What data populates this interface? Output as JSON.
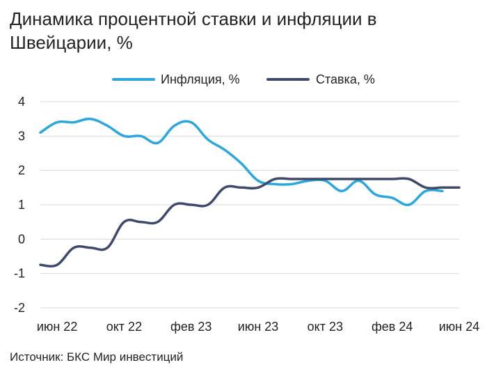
{
  "title": "Динамика процентной ставки и инфляции в Швейцарии, %",
  "source": "Источник: БКС Мир инвестиций",
  "chart_data": {
    "type": "line",
    "title": "Динамика процентной ставки и инфляции в Швейцарии, %",
    "xlabel": "",
    "ylabel": "",
    "ylim": [
      -2,
      4
    ],
    "yticks": [
      "4",
      "3",
      "2",
      "1",
      "0",
      "-1",
      "-2"
    ],
    "xticks": [
      "июн 22",
      "окт 22",
      "фев 23",
      "июн 23",
      "окт 23",
      "фев 24",
      "июн 24"
    ],
    "xlim": [
      "2022-05",
      "2024-06"
    ],
    "grid": true,
    "legend": "top",
    "x": [
      "2022-05",
      "2022-06",
      "2022-07",
      "2022-08",
      "2022-09",
      "2022-10",
      "2022-11",
      "2022-12",
      "2023-01",
      "2023-02",
      "2023-03",
      "2023-04",
      "2023-05",
      "2023-06",
      "2023-07",
      "2023-08",
      "2023-09",
      "2023-10",
      "2023-11",
      "2023-12",
      "2024-01",
      "2024-02",
      "2024-03",
      "2024-04",
      "2024-05",
      "2024-06"
    ],
    "series": [
      {
        "name": "Инфляция, %",
        "color": "#2aa7de",
        "values": [
          3.1,
          3.4,
          3.4,
          3.5,
          3.3,
          3.0,
          3.0,
          2.8,
          3.3,
          3.4,
          2.9,
          2.6,
          2.2,
          1.7,
          1.6,
          1.6,
          1.7,
          1.7,
          1.4,
          1.7,
          1.3,
          1.2,
          1.0,
          1.4,
          1.4,
          null
        ]
      },
      {
        "name": "Ставка, %",
        "color": "#3d4a6b",
        "values": [
          -0.75,
          -0.75,
          -0.25,
          -0.25,
          -0.25,
          0.5,
          0.5,
          0.5,
          1.0,
          1.0,
          1.0,
          1.5,
          1.5,
          1.5,
          1.75,
          1.75,
          1.75,
          1.75,
          1.75,
          1.75,
          1.75,
          1.75,
          1.75,
          1.5,
          1.5,
          1.5
        ]
      }
    ]
  }
}
